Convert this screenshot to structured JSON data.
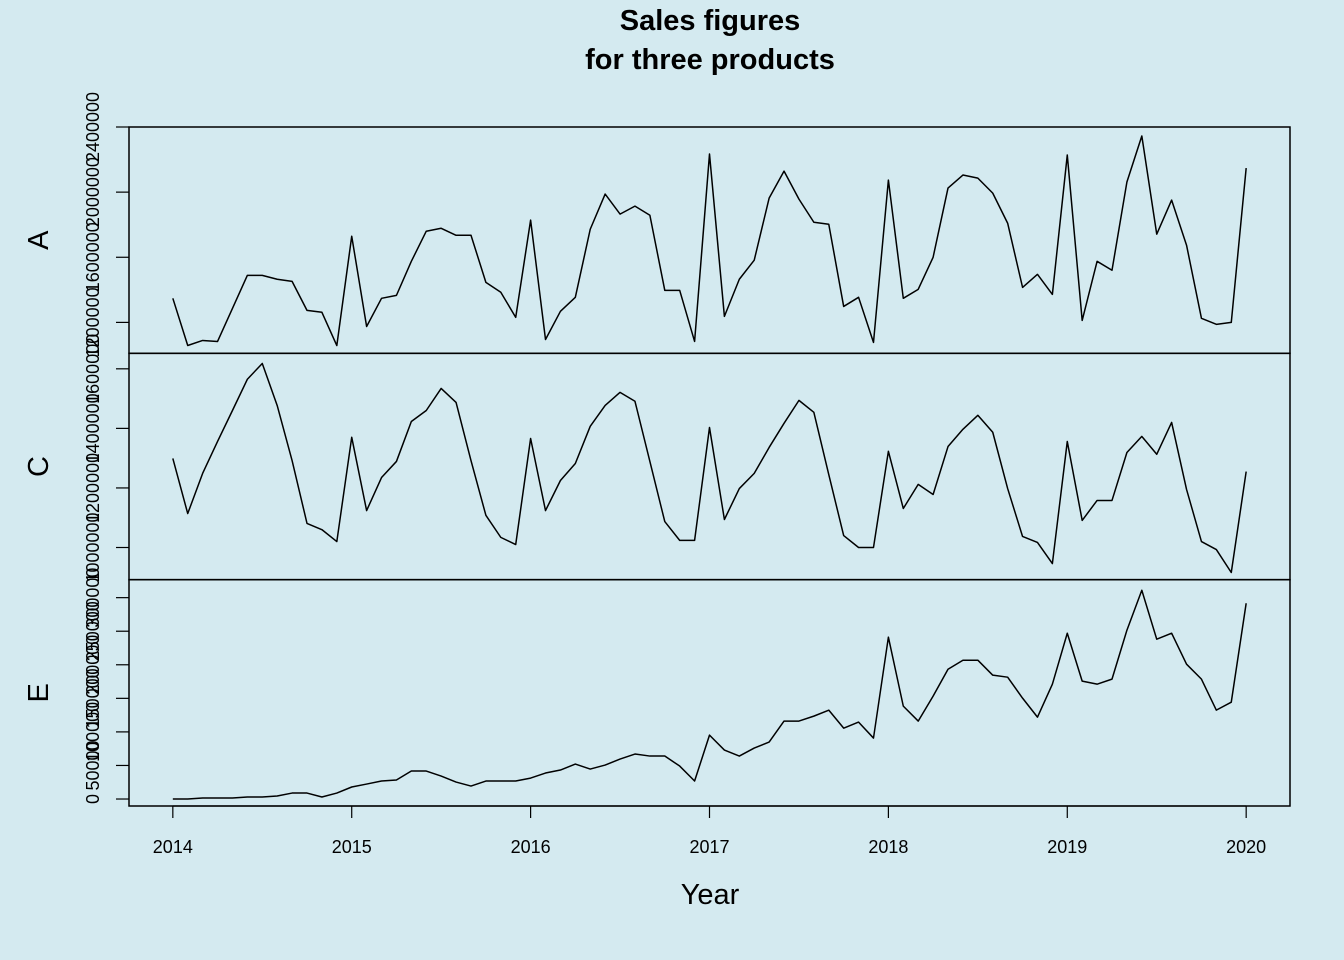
{
  "chart_data": {
    "type": "line",
    "title": [
      "Sales figures",
      "for three products"
    ],
    "x_label": "Year",
    "xlim": [
      2013.755,
      2020.245
    ],
    "xticks": [
      2014,
      2015,
      2016,
      2017,
      2018,
      2019,
      2020
    ],
    "color": "#000000",
    "x": [
      2014,
      2014.0833,
      2014.1667,
      2014.25,
      2014.3333,
      2014.4167,
      2014.5,
      2014.5833,
      2014.6667,
      2014.75,
      2014.8333,
      2014.9167,
      2015,
      2015.0833,
      2015.1667,
      2015.25,
      2015.3333,
      2015.4167,
      2015.5,
      2015.5833,
      2015.6667,
      2015.75,
      2015.8333,
      2015.9167,
      2016,
      2016.0833,
      2016.1667,
      2016.25,
      2016.3333,
      2016.4167,
      2016.5,
      2016.5833,
      2016.6667,
      2016.75,
      2016.8333,
      2016.9167,
      2017,
      2017.0833,
      2017.1667,
      2017.25,
      2017.3333,
      2017.4167,
      2017.5,
      2017.5833,
      2017.6667,
      2017.75,
      2017.8333,
      2017.9167,
      2018,
      2018.0833,
      2018.1667,
      2018.25,
      2018.3333,
      2018.4167,
      2018.5,
      2018.5833,
      2018.6667,
      2018.75,
      2018.8333,
      2018.9167,
      2019,
      2019.0833,
      2019.1667,
      2019.25,
      2019.3333,
      2019.4167,
      2019.5,
      2019.5833,
      2019.6667,
      2019.75,
      2019.8333,
      2019.9167,
      2020
    ],
    "panels": [
      {
        "y_label": "A",
        "ylim": [
          1010000,
          2400000
        ],
        "yticks": [
          1200000,
          1600000,
          2000000,
          2400000
        ],
        "values": [
          1348000,
          1058000,
          1089000,
          1083000,
          1286000,
          1489000,
          1489000,
          1465000,
          1452000,
          1274000,
          1262000,
          1058000,
          1729000,
          1175000,
          1348000,
          1366000,
          1575000,
          1760000,
          1778000,
          1735000,
          1735000,
          1446000,
          1385000,
          1231000,
          1828000,
          1095000,
          1268000,
          1354000,
          1772000,
          1988000,
          1865000,
          1914000,
          1858000,
          1397000,
          1397000,
          1083000,
          2234000,
          1237000,
          1465000,
          1582000,
          1963000,
          2129000,
          1957000,
          1815000,
          1803000,
          1298000,
          1354000,
          1077000,
          2074000,
          1348000,
          1403000,
          1600000,
          2025000,
          2105000,
          2086000,
          1994000,
          1809000,
          1415000,
          1495000,
          1372000,
          2228000,
          1212000,
          1575000,
          1520000,
          2062000,
          2345000,
          1742000,
          1951000,
          1674000,
          1225000,
          1188000,
          1200000,
          2148000
        ]
      },
      {
        "y_label": "C",
        "ylim": [
          892000,
          1652000
        ],
        "yticks": [
          1000000,
          1200000,
          1400000,
          1600000
        ],
        "values": [
          1299000,
          1114000,
          1249000,
          1356000,
          1460000,
          1565000,
          1618000,
          1477000,
          1292000,
          1081000,
          1060000,
          1020000,
          1370000,
          1124000,
          1235000,
          1289000,
          1423000,
          1460000,
          1534000,
          1487000,
          1292000,
          1108000,
          1034000,
          1010000,
          1366000,
          1124000,
          1225000,
          1282000,
          1407000,
          1477000,
          1521000,
          1491000,
          1289000,
          1087000,
          1024000,
          1024000,
          1403000,
          1094000,
          1198000,
          1249000,
          1336000,
          1417000,
          1494000,
          1454000,
          1245000,
          1040000,
          1000000,
          1000000,
          1323000,
          1131000,
          1212000,
          1178000,
          1339000,
          1397000,
          1444000,
          1387000,
          1198000,
          1037000,
          1017000,
          946000,
          1356000,
          1091000,
          1158000,
          1158000,
          1319000,
          1373000,
          1313000,
          1420000,
          1195000,
          1020000,
          993000,
          916000,
          1255000
        ]
      },
      {
        "y_label": "E",
        "ylim": [
          -10400,
          326800
        ],
        "yticks": [
          0,
          50000,
          100000,
          150000,
          200000,
          250000,
          300000
        ],
        "values": [
          0,
          0,
          1500,
          1500,
          1500,
          3000,
          3000,
          4500,
          8900,
          8900,
          3000,
          8900,
          17900,
          22300,
          26800,
          28300,
          41700,
          41700,
          34200,
          25300,
          19300,
          26800,
          26800,
          26800,
          31200,
          38700,
          43200,
          52100,
          44600,
          50600,
          59500,
          67000,
          64000,
          64000,
          49100,
          26800,
          95200,
          72900,
          64000,
          75900,
          84800,
          116100,
          116100,
          123500,
          132400,
          105600,
          114600,
          90800,
          241100,
          138400,
          116100,
          153300,
          193400,
          206800,
          206800,
          184500,
          181500,
          150300,
          122000,
          171100,
          247000,
          175600,
          171100,
          178600,
          251500,
          311000,
          238100,
          247000,
          200900,
          178600,
          132400,
          144300,
          291600
        ]
      }
    ]
  }
}
